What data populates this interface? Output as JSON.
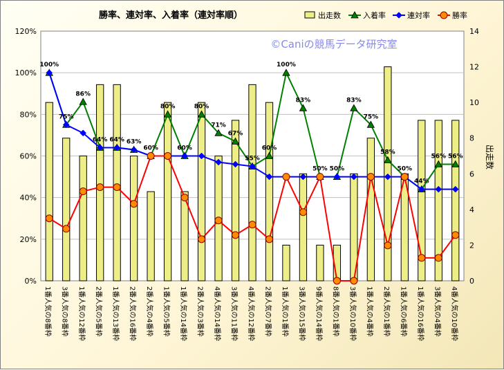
{
  "chart_data": {
    "type": "bar",
    "title": "勝率、連対率、入着率（連対率順）",
    "watermark": "©Caniの競馬データ研究室",
    "xlabel": "",
    "ylabel_left": "",
    "ylabel_right": "出走数",
    "ylim_left": [
      0,
      1.2
    ],
    "ylim_right": [
      0,
      14
    ],
    "left_ticks": [
      "0%",
      "20%",
      "40%",
      "60%",
      "80%",
      "100%",
      "120%"
    ],
    "right_ticks": [
      "0",
      "2",
      "4",
      "6",
      "8",
      "10",
      "12",
      "14"
    ],
    "legend_position": "top",
    "grid": true,
    "categories": [
      "1番人気の8番枠",
      "3番人気の8番枠",
      "1番人気の12番枠",
      "2番人気の5番枠",
      "1番人気の13番枠",
      "2番人気の16番枠",
      "2番人気の4番枠",
      "1番人気の5番枠",
      "1番人気の14番枠",
      "2番人気の3番枠",
      "4番人気の14番枠",
      "3番人気の11番枠",
      "4番人気の12番枠",
      "2番人気の7番枠",
      "1番人気の1番枠",
      "3番人気の15番枠",
      "9番人気の14番枠",
      "8番人気の1番枠",
      "3番人気の10番枠",
      "1番人気の4番枠",
      "2番人気の1番枠",
      "1番人気の6番枠",
      "1番人気の16番枠",
      "3番人気の4番枠",
      "4番人気の10番枠"
    ],
    "series": [
      {
        "name": "出走数",
        "type": "bar",
        "axis": "right",
        "color": "#eeee88",
        "values": [
          10,
          8,
          7,
          11,
          11,
          7,
          5,
          10,
          5,
          10,
          7,
          9,
          11,
          10,
          2,
          6,
          2,
          2,
          6,
          8,
          12,
          6,
          9,
          9,
          9
        ]
      },
      {
        "name": "入着率",
        "type": "line",
        "axis": "left",
        "color": "#008000",
        "marker": "triangle",
        "values": [
          1.0,
          0.75,
          0.86,
          0.64,
          0.64,
          0.63,
          0.6,
          0.8,
          0.6,
          0.8,
          0.71,
          0.67,
          0.55,
          0.6,
          1.0,
          0.83,
          0.5,
          0.5,
          0.83,
          0.75,
          0.58,
          0.5,
          0.44,
          0.56,
          0.56
        ],
        "labels": [
          "100%",
          "75%",
          "86%",
          "64%",
          "64%",
          "63%",
          "60%",
          "80%",
          "60%",
          "80%",
          "71%",
          "67%",
          "55%",
          "60%",
          "100%",
          "83%",
          "50%",
          "50%",
          "83%",
          "75%",
          "58%",
          "50%",
          "44%",
          "56%",
          "56%"
        ]
      },
      {
        "name": "連対率",
        "type": "line",
        "axis": "left",
        "color": "#0000ff",
        "marker": "diamond",
        "values": [
          1.0,
          0.75,
          0.71,
          0.64,
          0.64,
          0.63,
          0.6,
          0.6,
          0.6,
          0.6,
          0.57,
          0.56,
          0.55,
          0.5,
          0.5,
          0.5,
          0.5,
          0.5,
          0.5,
          0.5,
          0.5,
          0.5,
          0.44,
          0.44,
          0.44
        ]
      },
      {
        "name": "勝率",
        "type": "line",
        "axis": "left",
        "color": "#ff0000",
        "marker": "circle",
        "values": [
          0.3,
          0.25,
          0.43,
          0.45,
          0.45,
          0.37,
          0.6,
          0.6,
          0.4,
          0.2,
          0.29,
          0.22,
          0.27,
          0.2,
          0.5,
          0.33,
          0.5,
          0.0,
          0.0,
          0.5,
          0.17,
          0.5,
          0.11,
          0.11,
          0.22
        ]
      }
    ]
  }
}
